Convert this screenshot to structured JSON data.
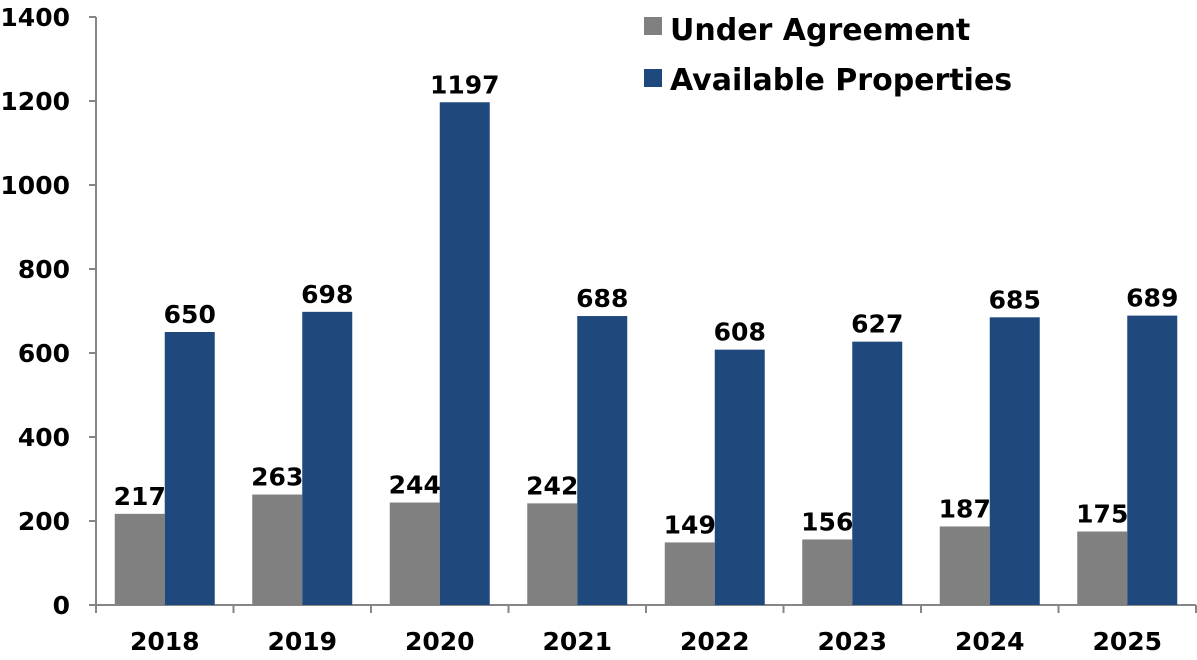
{
  "chart_data": {
    "type": "bar",
    "title": "",
    "xlabel": "",
    "ylabel": "",
    "categories": [
      "2018",
      "2019",
      "2020",
      "2021",
      "2022",
      "2023",
      "2024",
      "2025"
    ],
    "series": [
      {
        "name": "Under Agreement",
        "color": "#808080",
        "values": [
          217,
          263,
          244,
          242,
          149,
          156,
          187,
          175
        ]
      },
      {
        "name": "Available Properties",
        "color": "#1f497d",
        "values": [
          650,
          698,
          1197,
          688,
          608,
          627,
          685,
          689
        ]
      }
    ],
    "ylim": [
      0,
      1400
    ],
    "yticks": [
      0,
      200,
      400,
      600,
      800,
      1000,
      1200,
      1400
    ],
    "grid": false,
    "legend_position": "top-right"
  }
}
